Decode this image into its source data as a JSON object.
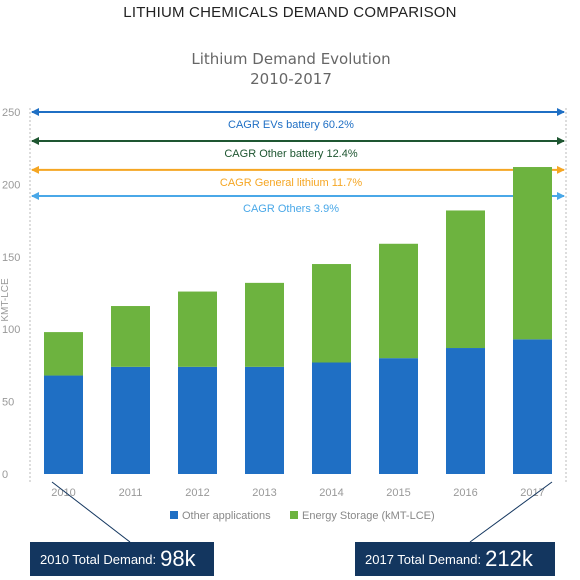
{
  "page_heading": "LITHIUM CHEMICALS DEMAND COMPARISON",
  "chart_data": {
    "type": "bar",
    "stacked": true,
    "title": "Lithium Demand Evolution",
    "subtitle": "2010-2017",
    "ylabel": "KMT-LCE",
    "ylim": [
      0,
      250
    ],
    "yticks": [
      "0",
      "50",
      "100",
      "150",
      "200",
      "250"
    ],
    "categories": [
      "2010",
      "2011",
      "2012",
      "2013",
      "2014",
      "2015",
      "2016",
      "2017"
    ],
    "series": [
      {
        "name": "Other applications",
        "color": "#1f6fc4",
        "values": [
          68,
          74,
          74,
          74,
          77,
          80,
          87,
          93
        ]
      },
      {
        "name": "Energy Storage (kMT-LCE)",
        "color": "#6db33f",
        "values": [
          30,
          42,
          52,
          58,
          68,
          79,
          95,
          119
        ]
      }
    ],
    "cagr": [
      {
        "label": "CAGR EVs battery 60.2%",
        "color": "#1f6fc4",
        "level": 250
      },
      {
        "label": "CAGR Other battery 12.4%",
        "color": "#1e5631",
        "level": 230
      },
      {
        "label": "CAGR General lithium 11.7%",
        "color": "#f5a623",
        "level": 210
      },
      {
        "label": "CAGR Others 3.9%",
        "color": "#4aa8e8",
        "level": 192
      }
    ],
    "grid": false,
    "legend": "bottom"
  },
  "totals": {
    "start": {
      "label": "2010 Total Demand:",
      "value": "98k"
    },
    "end": {
      "label": "2017 Total Demand:",
      "value": "212k"
    }
  }
}
